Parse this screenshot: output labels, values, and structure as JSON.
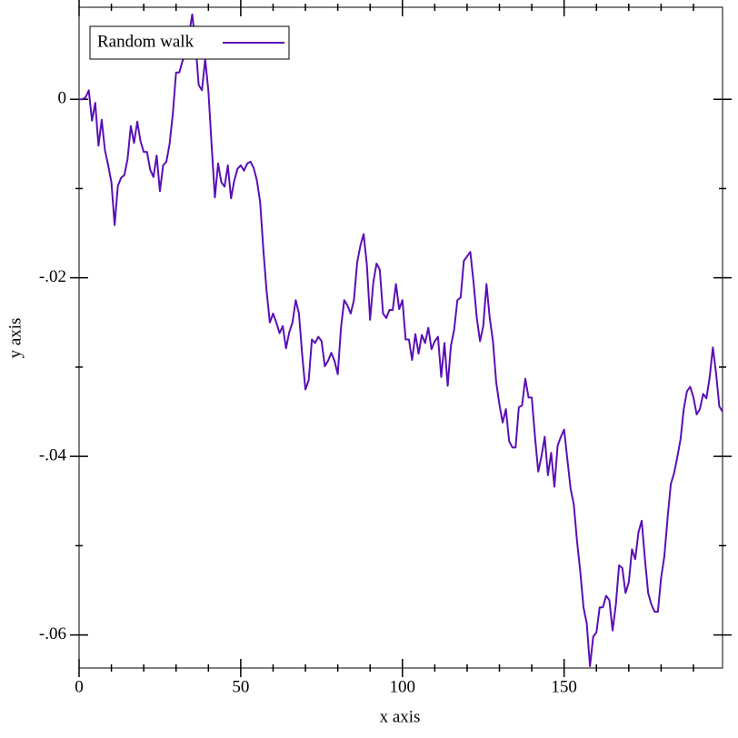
{
  "chart_data": {
    "type": "line",
    "x_label": "x axis",
    "y_label": "y axis",
    "legend": "top-left",
    "xlim": [
      0,
      199
    ],
    "ylim": [
      -0.0637,
      0.0103
    ],
    "xticks": [
      0,
      50,
      100,
      150
    ],
    "xminorticks": [
      10,
      20,
      30,
      40,
      60,
      70,
      80,
      90,
      110,
      120,
      130,
      140,
      160,
      170,
      180,
      190
    ],
    "yticks": [
      0,
      {
        "value": -0.02,
        "label": "-.02"
      },
      {
        "value": -0.04,
        "label": "-.04"
      },
      {
        "value": -0.06,
        "label": "-.06"
      }
    ],
    "yminorticks": [
      -0.01,
      -0.03,
      -0.05
    ],
    "x": [
      0,
      1,
      2,
      3,
      4,
      5,
      6,
      7,
      8,
      9,
      10,
      11,
      12,
      13,
      14,
      15,
      16,
      17,
      18,
      19,
      20,
      21,
      22,
      23,
      24,
      25,
      26,
      27,
      28,
      29,
      30,
      31,
      32,
      33,
      34,
      35,
      36,
      37,
      38,
      39,
      40,
      41,
      42,
      43,
      44,
      45,
      46,
      47,
      48,
      49,
      50,
      51,
      52,
      53,
      54,
      55,
      56,
      57,
      58,
      59,
      60,
      61,
      62,
      63,
      64,
      65,
      66,
      67,
      68,
      69,
      70,
      71,
      72,
      73,
      74,
      75,
      76,
      77,
      78,
      79,
      80,
      81,
      82,
      83,
      84,
      85,
      86,
      87,
      88,
      89,
      90,
      91,
      92,
      93,
      94,
      95,
      96,
      97,
      98,
      99,
      100,
      101,
      102,
      103,
      104,
      105,
      106,
      107,
      108,
      109,
      110,
      111,
      112,
      113,
      114,
      115,
      116,
      117,
      118,
      119,
      120,
      121,
      122,
      123,
      124,
      125,
      126,
      127,
      128,
      129,
      130,
      131,
      132,
      133,
      134,
      135,
      136,
      137,
      138,
      139,
      140,
      141,
      142,
      143,
      144,
      145,
      146,
      147,
      148,
      149,
      150,
      151,
      152,
      153,
      154,
      155,
      156,
      157,
      158,
      159,
      160,
      161,
      162,
      163,
      164,
      165,
      166,
      167,
      168,
      169,
      170,
      171,
      172,
      173,
      174,
      175,
      176,
      177,
      178,
      179,
      180,
      181,
      182,
      183,
      184,
      185,
      186,
      187,
      188,
      189,
      190,
      191,
      192,
      193,
      194,
      195,
      196,
      197,
      198,
      199
    ],
    "series": [
      {
        "name": "Random walk",
        "color": "#5a10b4",
        "values": [
          0,
          0,
          0.0002,
          0.001,
          -0.0024,
          -0.0004,
          -0.0052,
          -0.0023,
          -0.0057,
          -0.0074,
          -0.0093,
          -0.0141,
          -0.0097,
          -0.0088,
          -0.0085,
          -0.0067,
          -0.003,
          -0.0049,
          -0.0025,
          -0.0047,
          -0.0059,
          -0.0059,
          -0.0079,
          -0.0087,
          -0.0063,
          -0.0103,
          -0.0074,
          -0.007,
          -0.005,
          -0.0016,
          0.003,
          0.003,
          0.0043,
          0.005,
          0.0072,
          0.0095,
          0.0062,
          0.0016,
          0.001,
          0.0045,
          0.0009,
          -0.0052,
          -0.011,
          -0.0072,
          -0.0093,
          -0.0098,
          -0.0074,
          -0.0111,
          -0.0091,
          -0.0078,
          -0.0074,
          -0.008,
          -0.0072,
          -0.007,
          -0.0077,
          -0.0091,
          -0.0115,
          -0.0169,
          -0.0215,
          -0.025,
          -0.024,
          -0.025,
          -0.0262,
          -0.0254,
          -0.0279,
          -0.0261,
          -0.025,
          -0.0225,
          -0.024,
          -0.0286,
          -0.0325,
          -0.0315,
          -0.0269,
          -0.0273,
          -0.0266,
          -0.0271,
          -0.0299,
          -0.0293,
          -0.0284,
          -0.0293,
          -0.0308,
          -0.0256,
          -0.0225,
          -0.0231,
          -0.024,
          -0.0225,
          -0.0183,
          -0.0164,
          -0.0151,
          -0.0185,
          -0.0247,
          -0.0205,
          -0.0184,
          -0.0191,
          -0.024,
          -0.0245,
          -0.0236,
          -0.0236,
          -0.0207,
          -0.0235,
          -0.0225,
          -0.0269,
          -0.0269,
          -0.0292,
          -0.0263,
          -0.0285,
          -0.0264,
          -0.0273,
          -0.0256,
          -0.028,
          -0.0271,
          -0.0266,
          -0.0311,
          -0.0273,
          -0.0321,
          -0.0276,
          -0.0258,
          -0.0225,
          -0.0222,
          -0.0181,
          -0.0176,
          -0.0171,
          -0.0205,
          -0.0245,
          -0.0271,
          -0.0254,
          -0.0207,
          -0.0245,
          -0.0271,
          -0.0317,
          -0.0342,
          -0.0362,
          -0.0347,
          -0.0383,
          -0.039,
          -0.039,
          -0.0345,
          -0.0343,
          -0.0313,
          -0.0334,
          -0.0334,
          -0.0378,
          -0.0417,
          -0.04,
          -0.0378,
          -0.0421,
          -0.0396,
          -0.0434,
          -0.0388,
          -0.0378,
          -0.037,
          -0.0403,
          -0.0436,
          -0.0454,
          -0.0495,
          -0.0529,
          -0.0569,
          -0.0587,
          -0.0635,
          -0.0602,
          -0.0597,
          -0.0569,
          -0.0569,
          -0.0556,
          -0.0561,
          -0.0595,
          -0.0566,
          -0.0522,
          -0.0525,
          -0.0553,
          -0.0541,
          -0.0504,
          -0.0515,
          -0.0485,
          -0.0472,
          -0.0515,
          -0.0553,
          -0.0566,
          -0.0574,
          -0.0574,
          -0.0536,
          -0.0512,
          -0.0469,
          -0.0431,
          -0.0419,
          -0.0401,
          -0.0381,
          -0.0347,
          -0.0327,
          -0.0322,
          -0.0334,
          -0.0353,
          -0.0347,
          -0.033,
          -0.0335,
          -0.0312,
          -0.0278,
          -0.0307,
          -0.0344,
          -0.035
        ]
      }
    ]
  }
}
